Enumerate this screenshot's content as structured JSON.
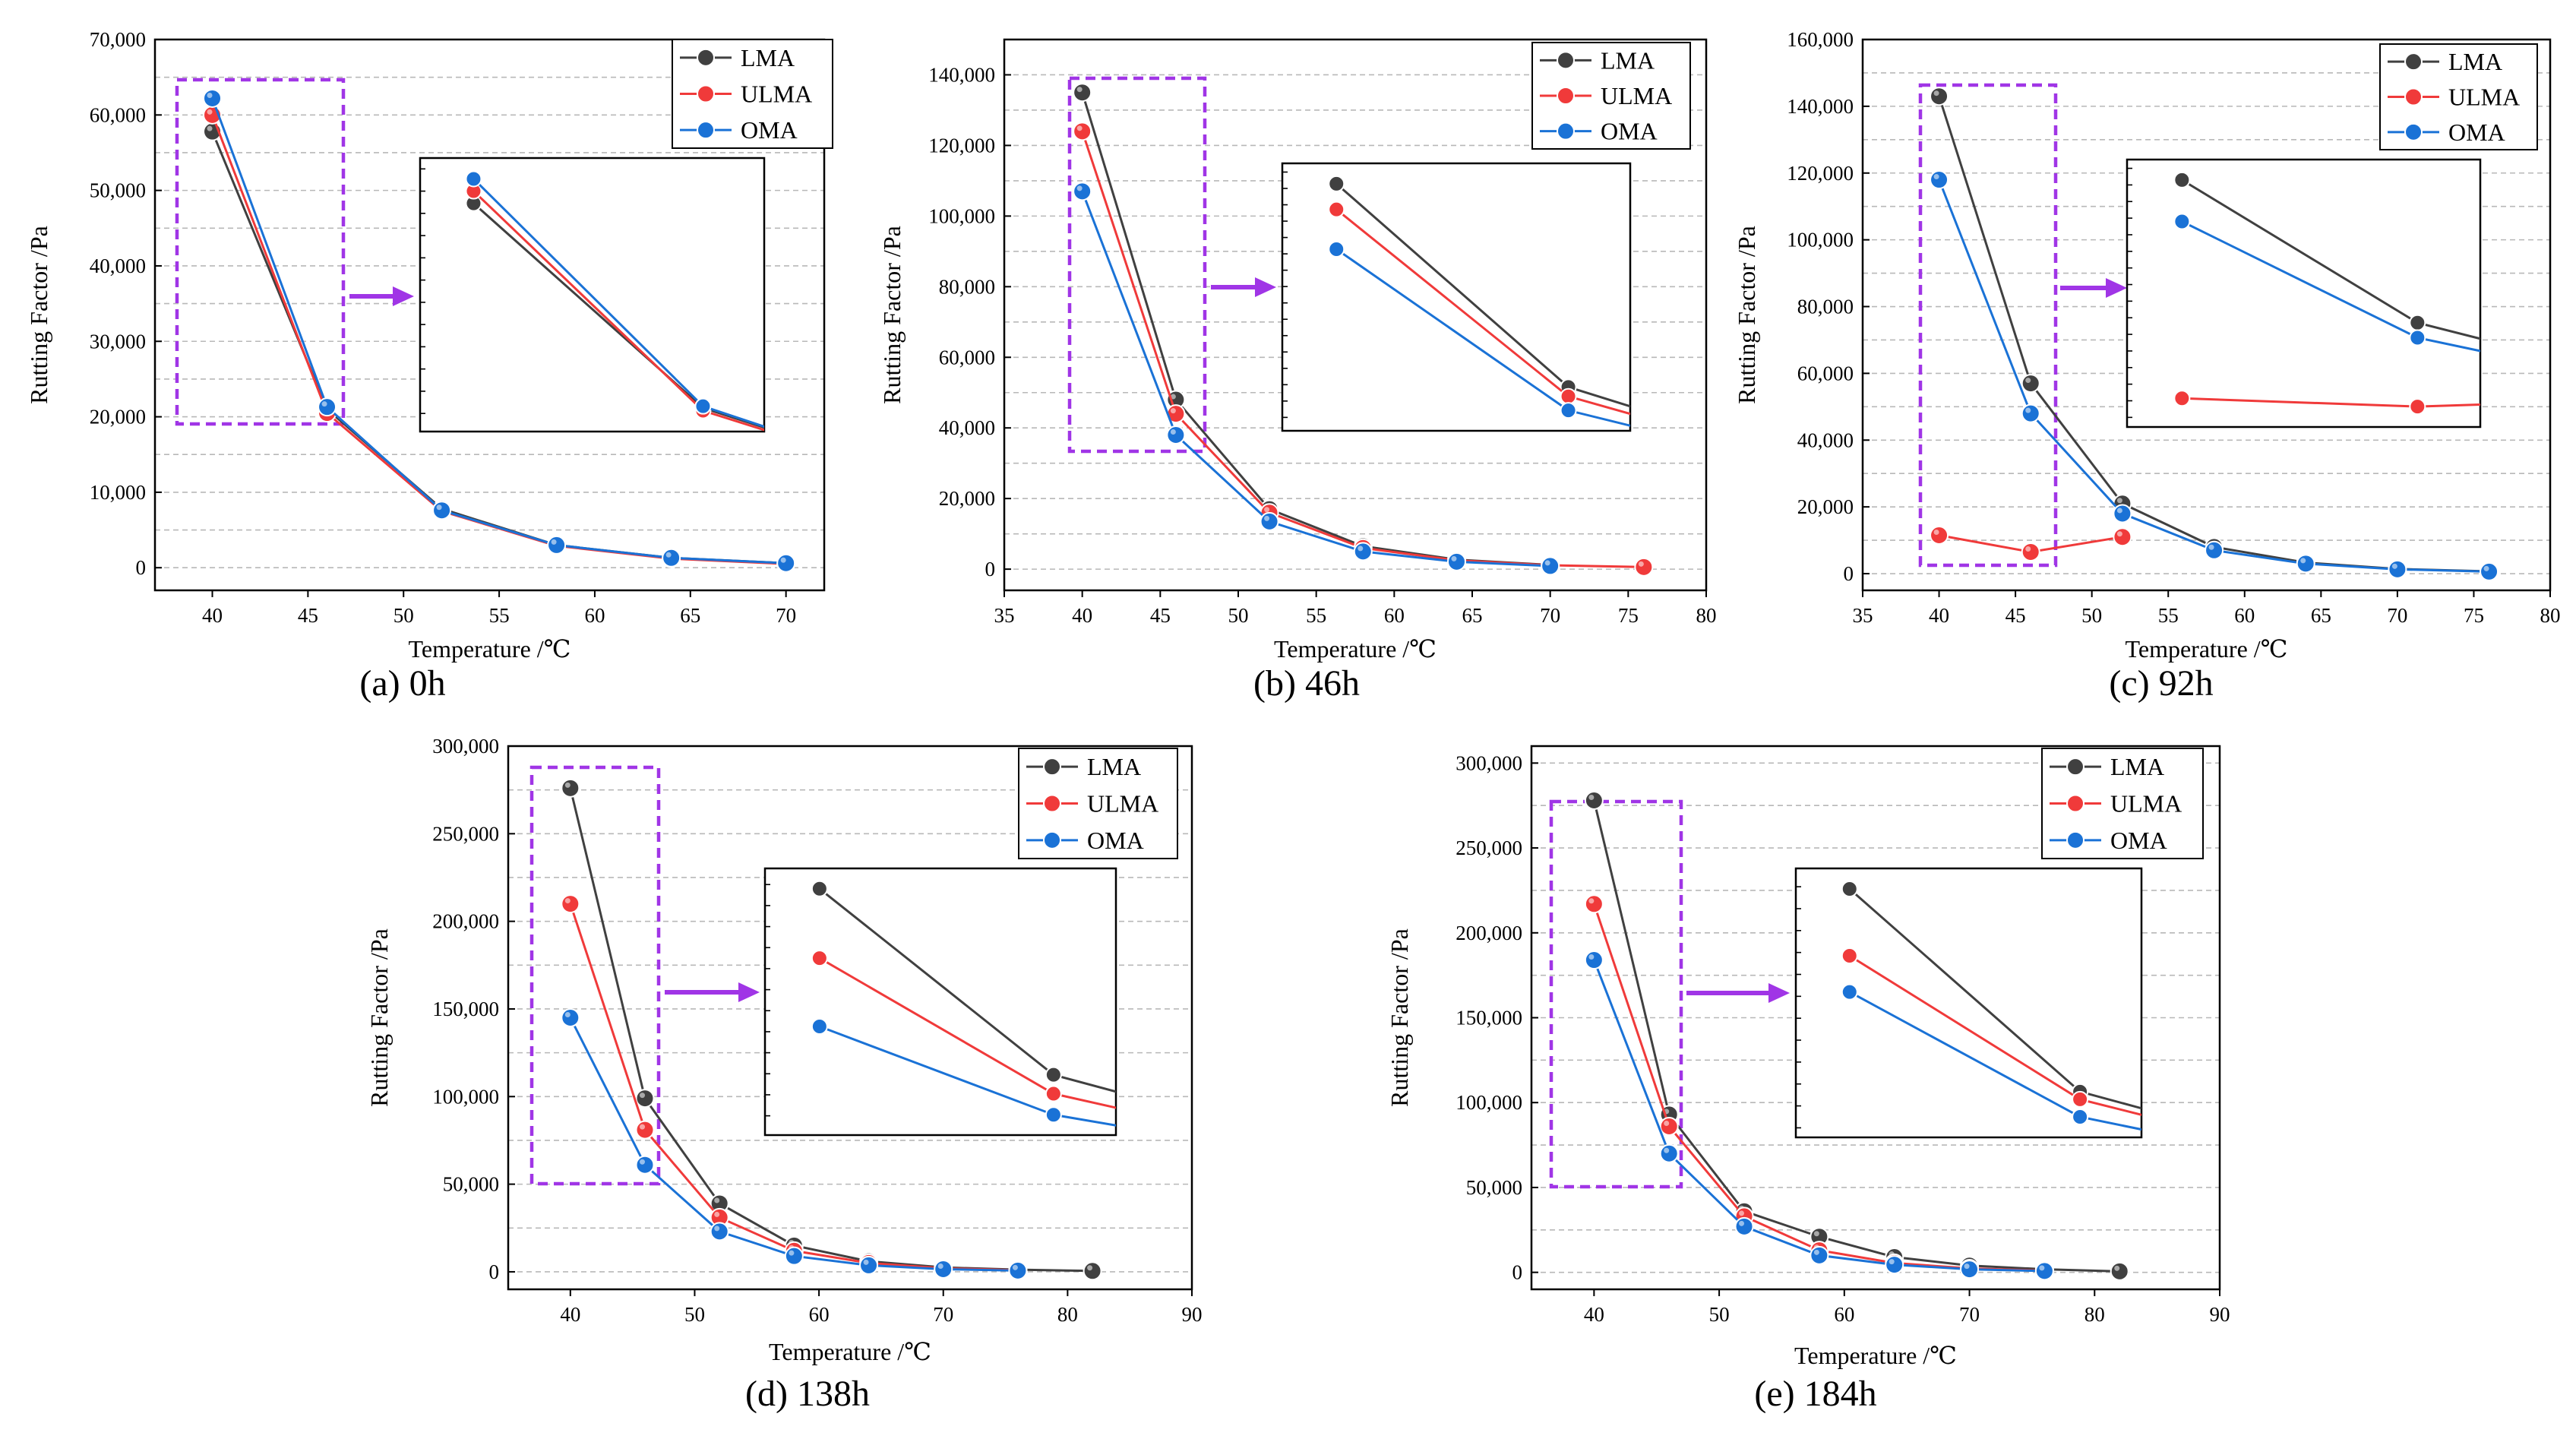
{
  "figure": {
    "colors": {
      "LMA": "#404040",
      "ULMA": "#f03a3a",
      "OMA": "#1a72d6",
      "highlight": "#a035e6",
      "grid": "#b8b8b8"
    }
  },
  "chart_data": [
    {
      "type": "line",
      "caption": "(a) 0h",
      "xlabel": "Temperature /℃",
      "ylabel": "Rutting Factor /Pa",
      "xlim": [
        37,
        72
      ],
      "ylim": [
        -3000,
        70000
      ],
      "xticks": [
        40,
        45,
        50,
        55,
        60,
        65,
        70
      ],
      "yticks": [
        0,
        10000,
        20000,
        30000,
        40000,
        50000,
        60000,
        70000
      ],
      "ytick_labels": [
        "0",
        "10,000",
        "20,000",
        "30,000",
        "40,000",
        "50,000",
        "60,000",
        "70,000"
      ],
      "legend": [
        "LMA",
        "ULMA",
        "OMA"
      ],
      "series": [
        {
          "name": "LMA",
          "x": [
            40,
            46,
            52,
            58,
            64,
            70
          ],
          "y": [
            57800,
            21000,
            7800,
            3000,
            1300,
            600
          ]
        },
        {
          "name": "ULMA",
          "x": [
            40,
            46,
            52,
            58,
            64,
            70
          ],
          "y": [
            60000,
            20500,
            7500,
            2900,
            1200,
            500
          ]
        },
        {
          "name": "OMA",
          "x": [
            40,
            46,
            52,
            58,
            64,
            70
          ],
          "y": [
            62200,
            21300,
            7600,
            3000,
            1300,
            600
          ]
        }
      ]
    },
    {
      "type": "line",
      "caption": "(b) 46h",
      "xlabel": "Temperature /℃",
      "ylabel": "Rutting Factor /Pa",
      "xlim": [
        35,
        80
      ],
      "ylim": [
        -6000,
        150000
      ],
      "xticks": [
        35,
        40,
        45,
        50,
        55,
        60,
        65,
        70,
        75,
        80
      ],
      "yticks": [
        0,
        20000,
        40000,
        60000,
        80000,
        100000,
        120000,
        140000
      ],
      "ytick_labels": [
        "0",
        "20,000",
        "40,000",
        "60,000",
        "80,000",
        "100,000",
        "120,000",
        "140,000"
      ],
      "legend": [
        "LMA",
        "ULMA",
        "OMA"
      ],
      "series": [
        {
          "name": "LMA",
          "x": [
            40,
            46,
            52,
            58,
            64,
            70
          ],
          "y": [
            135000,
            48000,
            17000,
            6500,
            2700,
            1200
          ]
        },
        {
          "name": "ULMA",
          "x": [
            40,
            46,
            52,
            58,
            64,
            70,
            76
          ],
          "y": [
            124000,
            44000,
            16000,
            6000,
            2500,
            1100,
            600
          ]
        },
        {
          "name": "OMA",
          "x": [
            40,
            46,
            52,
            58,
            64,
            70
          ],
          "y": [
            107000,
            38000,
            13500,
            5000,
            2100,
            900
          ]
        }
      ]
    },
    {
      "type": "line",
      "caption": "(c) 92h",
      "xlabel": "Temperature /℃",
      "ylabel": "Rutting Factor /Pa",
      "xlim": [
        35,
        80
      ],
      "ylim": [
        -5000,
        160000
      ],
      "xticks": [
        35,
        40,
        45,
        50,
        55,
        60,
        65,
        70,
        75,
        80
      ],
      "yticks": [
        0,
        20000,
        40000,
        60000,
        80000,
        100000,
        120000,
        140000,
        160000
      ],
      "ytick_labels": [
        "0",
        "20,000",
        "40,000",
        "60,000",
        "80,000",
        "100,000",
        "120,000",
        "140,000",
        "160,000"
      ],
      "legend": [
        "LMA",
        "ULMA",
        "OMA"
      ],
      "series": [
        {
          "name": "LMA",
          "x": [
            40,
            46,
            52,
            58,
            64,
            70,
            76
          ],
          "y": [
            143000,
            57000,
            21000,
            8000,
            3300,
            1400,
            700
          ]
        },
        {
          "name": "ULMA",
          "x": [
            40,
            46,
            52
          ],
          "y": [
            11500,
            6500,
            11000
          ]
        },
        {
          "name": "OMA",
          "x": [
            40,
            46,
            52,
            58,
            64,
            70,
            76
          ],
          "y": [
            118000,
            48000,
            18000,
            7000,
            3000,
            1300,
            600
          ]
        }
      ]
    },
    {
      "type": "line",
      "caption": "(d) 138h",
      "xlabel": "Temperature /℃",
      "ylabel": "Rutting Factor /Pa",
      "xlim": [
        35,
        90
      ],
      "ylim": [
        -10000,
        300000
      ],
      "xticks": [
        40,
        50,
        60,
        70,
        80,
        90
      ],
      "yticks": [
        0,
        50000,
        100000,
        150000,
        200000,
        250000,
        300000
      ],
      "ytick_labels": [
        "0",
        "50,000",
        "100,000",
        "150,000",
        "200,000",
        "250,000",
        "300,000"
      ],
      "legend": [
        "LMA",
        "ULMA",
        "OMA"
      ],
      "series": [
        {
          "name": "LMA",
          "x": [
            40,
            46,
            52,
            58,
            64,
            70,
            76,
            82
          ],
          "y": [
            276000,
            99000,
            39000,
            15000,
            6000,
            2500,
            1200,
            500
          ]
        },
        {
          "name": "ULMA",
          "x": [
            40,
            46,
            52,
            58,
            64,
            70,
            76
          ],
          "y": [
            210000,
            81000,
            31000,
            12000,
            5000,
            2000,
            900
          ]
        },
        {
          "name": "OMA",
          "x": [
            40,
            46,
            52,
            58,
            64,
            70,
            76
          ],
          "y": [
            145000,
            61000,
            23000,
            9000,
            3700,
            1500,
            700
          ]
        }
      ]
    },
    {
      "type": "line",
      "caption": "(e) 184h",
      "xlabel": "Temperature /℃",
      "ylabel": "Rutting Factor /Pa",
      "xlim": [
        35,
        90
      ],
      "ylim": [
        -10000,
        310000
      ],
      "xticks": [
        40,
        50,
        60,
        70,
        80,
        90
      ],
      "yticks": [
        0,
        50000,
        100000,
        150000,
        200000,
        250000,
        300000
      ],
      "ytick_labels": [
        "0",
        "50,000",
        "100,000",
        "150,000",
        "200,000",
        "250,000",
        "300,000"
      ],
      "legend": [
        "LMA",
        "ULMA",
        "OMA"
      ],
      "series": [
        {
          "name": "LMA",
          "x": [
            40,
            46,
            52,
            58,
            64,
            70,
            76,
            82
          ],
          "y": [
            278000,
            93000,
            36000,
            21000,
            9000,
            4000,
            1800,
            600
          ]
        },
        {
          "name": "ULMA",
          "x": [
            40,
            46,
            52,
            58,
            64,
            70,
            76
          ],
          "y": [
            217000,
            86000,
            33000,
            13000,
            5500,
            2300,
            1000
          ]
        },
        {
          "name": "OMA",
          "x": [
            40,
            46,
            52,
            58,
            64,
            70,
            76
          ],
          "y": [
            184000,
            70000,
            27000,
            10000,
            4500,
            1800,
            800
          ]
        }
      ]
    }
  ]
}
